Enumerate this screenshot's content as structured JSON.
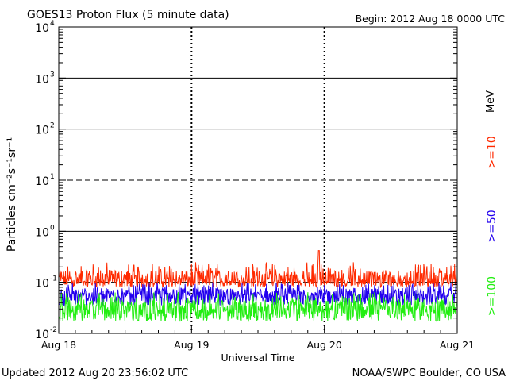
{
  "chart_data": {
    "type": "line",
    "title": "GOES13 Proton Flux (5 minute data)",
    "begin_label": "Begin: 2012 Aug 18 0000 UTC",
    "xlabel": "Universal Time",
    "ylabel": "Particles cm⁻²s⁻¹sr⁻¹",
    "y_scale": "log",
    "ylim": [
      0.01,
      10000
    ],
    "xlim": [
      "2012-08-18",
      "2012-08-21"
    ],
    "x_tick_labels": [
      "Aug 18",
      "Aug 19",
      "Aug 20",
      "Aug 21"
    ],
    "y_tick_labels": [
      {
        "value": 0.01,
        "base": "10",
        "exp": "-2"
      },
      {
        "value": 0.1,
        "base": "10",
        "exp": "-1"
      },
      {
        "value": 1,
        "base": "10",
        "exp": "0"
      },
      {
        "value": 10,
        "base": "10",
        "exp": "1"
      },
      {
        "value": 100,
        "base": "10",
        "exp": "2"
      },
      {
        "value": 1000,
        "base": "10",
        "exp": "3"
      },
      {
        "value": 10000,
        "base": "10",
        "exp": "4"
      }
    ],
    "thresholds": [
      {
        "value": 0.1,
        "style": "dashed"
      },
      {
        "value": 1,
        "style": "solid"
      },
      {
        "value": 10,
        "style": "dashed"
      },
      {
        "value": 100,
        "style": "solid"
      },
      {
        "value": 1000,
        "style": "solid"
      }
    ],
    "x_breaks": [
      "2012-08-19",
      "2012-08-20"
    ],
    "series": [
      {
        "name": ">=10",
        "color": "#ff2a00",
        "baseline": 0.11,
        "range": [
          0.08,
          0.25
        ]
      },
      {
        "name": ">=50",
        "color": "#2200ee",
        "baseline": 0.055,
        "range": [
          0.035,
          0.1
        ]
      },
      {
        "name": ">=100",
        "color": "#22ee11",
        "baseline": 0.03,
        "range": [
          0.017,
          0.065
        ]
      }
    ],
    "legend_unit": "MeV",
    "legend_position": "right"
  },
  "footer": {
    "updated": "Updated 2012 Aug 20 23:56:02 UTC",
    "source": "NOAA/SWPC Boulder, CO USA"
  }
}
